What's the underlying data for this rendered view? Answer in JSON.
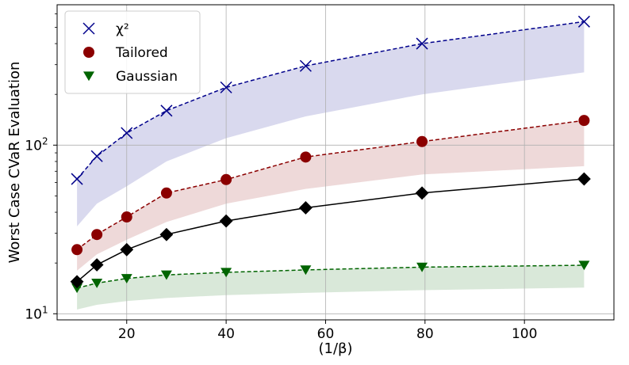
{
  "chart_data": {
    "type": "line",
    "title": "",
    "xlabel": "(1/β)",
    "ylabel": "Worst Case CVaR Evaluation",
    "yscale": "log",
    "xlim": [
      6,
      118
    ],
    "ylim": [
      9.2,
      680
    ],
    "grid": true,
    "legend_position": "top-left",
    "x_ticks": [
      20,
      40,
      60,
      80,
      100
    ],
    "y_ticks": [
      10,
      100
    ],
    "x": [
      10,
      14,
      20,
      28,
      40,
      56,
      79.4,
      112
    ],
    "series": [
      {
        "name": "χ²",
        "marker": "x",
        "color": "#00008b",
        "line": "dashed",
        "values": [
          63,
          86,
          118,
          160,
          220,
          295,
          400,
          540
        ],
        "band": {
          "lower": [
            33,
            45,
            57,
            80,
            110,
            148,
            200,
            270
          ],
          "upper": [
            63,
            86,
            118,
            160,
            220,
            295,
            400,
            540
          ]
        }
      },
      {
        "name": "Tailored",
        "marker": "circle",
        "color": "#8b0000",
        "line": "dashed",
        "values": [
          24,
          29.5,
          37.5,
          52,
          62.5,
          85,
          105,
          140
        ],
        "band": {
          "lower": [
            18,
            22.5,
            27.5,
            35,
            45,
            55,
            67,
            75
          ],
          "upper": [
            24,
            29.5,
            37.5,
            52,
            62.5,
            85,
            105,
            140
          ]
        }
      },
      {
        "name": "Gaussian",
        "marker": "triangle-down",
        "color": "#006400",
        "line": "dashed",
        "values": [
          14.2,
          15.2,
          16.2,
          17,
          17.6,
          18.2,
          18.9,
          19.4
        ],
        "band": {
          "lower": [
            10.6,
            11.3,
            11.9,
            12.4,
            12.9,
            13.3,
            13.8,
            14.3
          ],
          "upper": [
            14.2,
            15.2,
            16.2,
            17,
            17.6,
            18.2,
            18.9,
            19.4
          ]
        }
      },
      {
        "name": "",
        "marker": "diamond",
        "color": "#000000",
        "line": "solid",
        "values": [
          15.5,
          19.5,
          24,
          29.5,
          35.5,
          42.5,
          52,
          63
        ]
      }
    ]
  }
}
